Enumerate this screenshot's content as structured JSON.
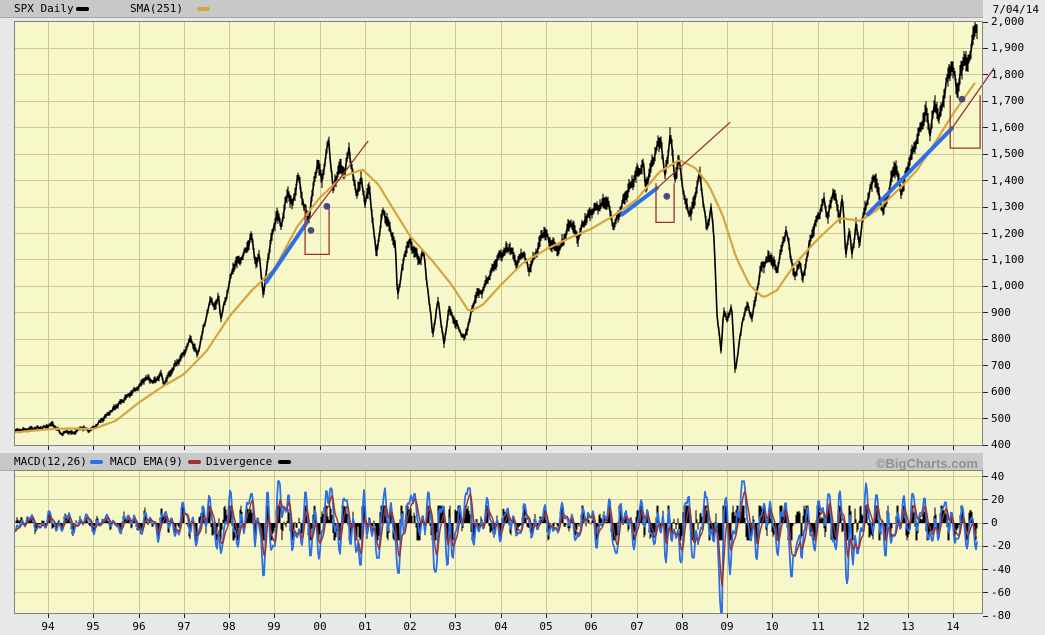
{
  "header": {
    "series_label": "SPX Daily",
    "sma_label": "SMA(251)",
    "date": "7/04/14"
  },
  "macd_header": {
    "macd_label": "MACD(12,26)",
    "ema_label": "MACD EMA(9)",
    "divergence_label": "Divergence",
    "watermark": "©BigCharts.com"
  },
  "colors": {
    "price": "#000000",
    "sma": "#D7A53E",
    "trend_blue": "#2F6FE4",
    "trend_red": "#993333",
    "macd_blue": "#2F6FE4",
    "macd_ema": "#993333",
    "histogram": "#000000",
    "dot": "#4F4680",
    "plot_bg": "#FDFDD4",
    "plot_bg_alt": "#F2F2C0",
    "gridline": "#C9C991",
    "plot_border": "#808080",
    "tick": "#222222",
    "legend_bar_bg": "#C8C8C8",
    "margin_bg": "#E8E8E8",
    "watermark_color": "#909090"
  },
  "chart_data": [
    {
      "type": "line",
      "title": "SPX Daily with SMA(251) overlay",
      "xlabel": "",
      "ylabel": "",
      "x_axis": {
        "tick_labels": [
          "94",
          "95",
          "96",
          "97",
          "98",
          "99",
          "00",
          "01",
          "02",
          "03",
          "04",
          "05",
          "06",
          "07",
          "08",
          "09",
          "10",
          "11",
          "12",
          "13",
          "14"
        ],
        "range_years": [
          1993.25,
          2014.63
        ]
      },
      "y_axis": {
        "ticks": [
          2000,
          1900,
          1800,
          1700,
          1600,
          1500,
          1400,
          1300,
          1200,
          1100,
          1000,
          900,
          800,
          700,
          600,
          500,
          400
        ],
        "tick_labels": [
          "2,000",
          "1,900",
          "1,800",
          "1,700",
          "1,600",
          "1,500",
          "1,400",
          "1,300",
          "1,200",
          "1,100",
          "1,000",
          "900",
          "800",
          "700",
          "600",
          "500",
          "400"
        ],
        "range": [
          400,
          2000
        ]
      },
      "price_anchors": [
        [
          1993.25,
          452
        ],
        [
          1993.6,
          462
        ],
        [
          1993.9,
          466
        ],
        [
          1994.1,
          480
        ],
        [
          1994.3,
          442
        ],
        [
          1994.45,
          452
        ],
        [
          1994.55,
          444
        ],
        [
          1994.75,
          468
        ],
        [
          1994.9,
          455
        ],
        [
          1995.0,
          465
        ],
        [
          1995.25,
          505
        ],
        [
          1995.5,
          545
        ],
        [
          1995.75,
          585
        ],
        [
          1996.0,
          620
        ],
        [
          1996.15,
          655
        ],
        [
          1996.35,
          640
        ],
        [
          1996.5,
          670
        ],
        [
          1996.55,
          630
        ],
        [
          1996.8,
          700
        ],
        [
          1997.0,
          745
        ],
        [
          1997.15,
          805
        ],
        [
          1997.3,
          740
        ],
        [
          1997.5,
          890
        ],
        [
          1997.6,
          950
        ],
        [
          1997.7,
          920
        ],
        [
          1997.77,
          965
        ],
        [
          1997.82,
          877
        ],
        [
          1997.95,
          970
        ],
        [
          1998.1,
          1080
        ],
        [
          1998.3,
          1110
        ],
        [
          1998.5,
          1190
        ],
        [
          1998.6,
          1080
        ],
        [
          1998.67,
          1120
        ],
        [
          1998.76,
          960
        ],
        [
          1998.85,
          1100
        ],
        [
          1998.95,
          1190
        ],
        [
          1999.05,
          1275
        ],
        [
          1999.15,
          1230
        ],
        [
          1999.3,
          1360
        ],
        [
          1999.4,
          1300
        ],
        [
          1999.52,
          1418
        ],
        [
          1999.62,
          1330
        ],
        [
          1999.75,
          1250
        ],
        [
          1999.95,
          1470
        ],
        [
          2000.05,
          1400
        ],
        [
          2000.2,
          1552
        ],
        [
          2000.3,
          1360
        ],
        [
          2000.42,
          1450
        ],
        [
          2000.55,
          1430
        ],
        [
          2000.65,
          1520
        ],
        [
          2000.8,
          1350
        ],
        [
          2000.92,
          1400
        ],
        [
          2001.0,
          1320
        ],
        [
          2001.1,
          1370
        ],
        [
          2001.25,
          1120
        ],
        [
          2001.4,
          1290
        ],
        [
          2001.55,
          1220
        ],
        [
          2001.67,
          1160
        ],
        [
          2001.72,
          966
        ],
        [
          2001.9,
          1140
        ],
        [
          2002.0,
          1165
        ],
        [
          2002.2,
          1100
        ],
        [
          2002.3,
          1125
        ],
        [
          2002.5,
          820
        ],
        [
          2002.62,
          950
        ],
        [
          2002.75,
          776
        ],
        [
          2002.85,
          915
        ],
        [
          2002.95,
          880
        ],
        [
          2003.2,
          800
        ],
        [
          2003.45,
          965
        ],
        [
          2003.6,
          985
        ],
        [
          2003.75,
          1040
        ],
        [
          2003.95,
          1110
        ],
        [
          2004.2,
          1150
        ],
        [
          2004.35,
          1085
        ],
        [
          2004.5,
          1130
        ],
        [
          2004.62,
          1060
        ],
        [
          2004.8,
          1135
        ],
        [
          2004.95,
          1212
        ],
        [
          2005.1,
          1160
        ],
        [
          2005.3,
          1140
        ],
        [
          2005.55,
          1245
        ],
        [
          2005.7,
          1180
        ],
        [
          2005.85,
          1250
        ],
        [
          2006.05,
          1290
        ],
        [
          2006.35,
          1325
        ],
        [
          2006.5,
          1225
        ],
        [
          2006.75,
          1340
        ],
        [
          2007.0,
          1425
        ],
        [
          2007.15,
          1460
        ],
        [
          2007.2,
          1375
        ],
        [
          2007.45,
          1530
        ],
        [
          2007.55,
          1553
        ],
        [
          2007.62,
          1410
        ],
        [
          2007.75,
          1576
        ],
        [
          2007.85,
          1410
        ],
        [
          2007.95,
          1480
        ],
        [
          2008.05,
          1330
        ],
        [
          2008.2,
          1270
        ],
        [
          2008.4,
          1426
        ],
        [
          2008.55,
          1215
        ],
        [
          2008.65,
          1300
        ],
        [
          2008.72,
          1160
        ],
        [
          2008.78,
          890
        ],
        [
          2008.87,
          750
        ],
        [
          2008.92,
          911
        ],
        [
          2009.0,
          870
        ],
        [
          2009.1,
          930
        ],
        [
          2009.18,
          677
        ],
        [
          2009.35,
          880
        ],
        [
          2009.45,
          930
        ],
        [
          2009.55,
          880
        ],
        [
          2009.75,
          1070
        ],
        [
          2009.95,
          1115
        ],
        [
          2010.1,
          1060
        ],
        [
          2010.3,
          1217
        ],
        [
          2010.5,
          1030
        ],
        [
          2010.6,
          1100
        ],
        [
          2010.67,
          1023
        ],
        [
          2010.85,
          1185
        ],
        [
          2011.0,
          1260
        ],
        [
          2011.15,
          1330
        ],
        [
          2011.22,
          1255
        ],
        [
          2011.35,
          1365
        ],
        [
          2011.48,
          1260
        ],
        [
          2011.55,
          1340
        ],
        [
          2011.62,
          1120
        ],
        [
          2011.7,
          1210
        ],
        [
          2011.76,
          1122
        ],
        [
          2011.85,
          1230
        ],
        [
          2011.92,
          1160
        ],
        [
          2012.0,
          1260
        ],
        [
          2012.25,
          1420
        ],
        [
          2012.45,
          1280
        ],
        [
          2012.65,
          1420
        ],
        [
          2012.72,
          1460
        ],
        [
          2012.85,
          1355
        ],
        [
          2013.0,
          1460
        ],
        [
          2013.2,
          1560
        ],
        [
          2013.4,
          1665
        ],
        [
          2013.48,
          1575
        ],
        [
          2013.6,
          1700
        ],
        [
          2013.68,
          1630
        ],
        [
          2013.85,
          1770
        ],
        [
          2013.95,
          1840
        ],
        [
          2014.1,
          1745
        ],
        [
          2014.25,
          1880
        ],
        [
          2014.3,
          1820
        ],
        [
          2014.45,
          1960
        ],
        [
          2014.51,
          1978
        ]
      ],
      "sma_anchors": [
        [
          1993.25,
          448
        ],
        [
          1994.0,
          460
        ],
        [
          1994.5,
          463
        ],
        [
          1995.0,
          461
        ],
        [
          1995.5,
          492
        ],
        [
          1996.0,
          560
        ],
        [
          1996.5,
          618
        ],
        [
          1997.0,
          668
        ],
        [
          1997.5,
          755
        ],
        [
          1998.0,
          885
        ],
        [
          1998.5,
          985
        ],
        [
          1999.0,
          1065
        ],
        [
          1999.5,
          1225
        ],
        [
          2000.0,
          1335
        ],
        [
          2000.5,
          1415
        ],
        [
          2000.95,
          1442
        ],
        [
          2001.3,
          1385
        ],
        [
          2001.6,
          1300
        ],
        [
          2002.0,
          1190
        ],
        [
          2002.5,
          1095
        ],
        [
          2002.9,
          1010
        ],
        [
          2003.3,
          905
        ],
        [
          2003.6,
          930
        ],
        [
          2004.0,
          1005
        ],
        [
          2004.5,
          1090
        ],
        [
          2005.0,
          1140
        ],
        [
          2005.5,
          1182
        ],
        [
          2006.0,
          1218
        ],
        [
          2006.5,
          1268
        ],
        [
          2007.0,
          1328
        ],
        [
          2007.5,
          1432
        ],
        [
          2007.95,
          1478
        ],
        [
          2008.3,
          1448
        ],
        [
          2008.6,
          1382
        ],
        [
          2008.9,
          1270
        ],
        [
          2009.2,
          1110
        ],
        [
          2009.5,
          1005
        ],
        [
          2009.8,
          958
        ],
        [
          2010.1,
          985
        ],
        [
          2010.5,
          1085
        ],
        [
          2011.0,
          1178
        ],
        [
          2011.5,
          1258
        ],
        [
          2011.95,
          1248
        ],
        [
          2012.3,
          1288
        ],
        [
          2012.8,
          1368
        ],
        [
          2013.2,
          1440
        ],
        [
          2013.6,
          1545
        ],
        [
          2014.0,
          1655
        ],
        [
          2014.51,
          1778
        ]
      ],
      "blue_trendlines": [
        [
          [
            1998.82,
            1016
          ],
          [
            1999.72,
            1242
          ]
        ],
        [
          [
            2006.68,
            1272
          ],
          [
            2007.45,
            1371
          ]
        ],
        [
          [
            2012.11,
            1273
          ],
          [
            2013.97,
            1598
          ]
        ]
      ],
      "red_trendlines": [
        [
          [
            1999.72,
            1242
          ],
          [
            2001.07,
            1550
          ]
        ],
        [
          [
            2007.45,
            1371
          ],
          [
            2009.07,
            1621
          ]
        ],
        [
          [
            2013.97,
            1598
          ],
          [
            2014.9,
            1826
          ]
        ]
      ],
      "boxes": [
        [
          1999.68,
          1299,
          2000.21,
          1121
        ],
        [
          2007.43,
          1390,
          2007.83,
          1242
        ],
        [
          2013.93,
          1723,
          2014.59,
          1523
        ]
      ],
      "dots": [
        [
          1999.81,
          1212
        ],
        [
          2000.16,
          1303
        ],
        [
          2007.67,
          1341
        ],
        [
          2014.19,
          1708
        ]
      ]
    },
    {
      "type": "line+histogram",
      "title": "MACD(12,26) with MACD EMA(9) and Divergence histogram",
      "y_axis": {
        "ticks": [
          40,
          20,
          0,
          -20,
          -40,
          -60,
          -80
        ],
        "tick_labels": [
          "40",
          "20",
          "0",
          "-20",
          "-40",
          "-60",
          "-80"
        ],
        "range": [
          -80,
          45
        ]
      },
      "amplitude_anchors": [
        [
          1993.3,
          6
        ],
        [
          1994.3,
          9
        ],
        [
          1995.3,
          7
        ],
        [
          1996.3,
          11
        ],
        [
          1997.0,
          16
        ],
        [
          1997.6,
          22
        ],
        [
          1998.3,
          22
        ],
        [
          1998.8,
          30
        ],
        [
          1999.3,
          26
        ],
        [
          2000.0,
          26
        ],
        [
          2000.8,
          28
        ],
        [
          2001.5,
          28
        ],
        [
          2002.0,
          26
        ],
        [
          2002.7,
          30
        ],
        [
          2003.3,
          22
        ],
        [
          2004.0,
          15
        ],
        [
          2005.0,
          13
        ],
        [
          2006.0,
          16
        ],
        [
          2006.6,
          22
        ],
        [
          2007.3,
          18
        ],
        [
          2007.9,
          26
        ],
        [
          2008.5,
          26
        ],
        [
          2008.9,
          40
        ],
        [
          2009.4,
          30
        ],
        [
          2010.0,
          20
        ],
        [
          2010.5,
          30
        ],
        [
          2011.0,
          22
        ],
        [
          2011.7,
          32
        ],
        [
          2012.3,
          22
        ],
        [
          2013.0,
          20
        ],
        [
          2013.7,
          20
        ],
        [
          2014.5,
          18
        ]
      ],
      "events": [
        [
          1997.82,
          -26,
          0.035
        ],
        [
          1998.5,
          25,
          0.05
        ],
        [
          1998.76,
          -45,
          0.045
        ],
        [
          1999.1,
          36,
          0.05
        ],
        [
          1999.8,
          -28,
          0.04
        ],
        [
          2000.25,
          30,
          0.05
        ],
        [
          2000.9,
          -36,
          0.045
        ],
        [
          2001.3,
          -30,
          0.04
        ],
        [
          2001.74,
          -43,
          0.04
        ],
        [
          2002.1,
          25,
          0.05
        ],
        [
          2002.55,
          -42,
          0.045
        ],
        [
          2002.82,
          -36,
          0.04
        ],
        [
          2003.3,
          30,
          0.06
        ],
        [
          2006.55,
          -26,
          0.045
        ],
        [
          2007.65,
          -34,
          0.04
        ],
        [
          2007.98,
          -34,
          0.04
        ],
        [
          2008.25,
          -30,
          0.05
        ],
        [
          2008.55,
          22,
          0.04
        ],
        [
          2008.87,
          -80,
          0.045
        ],
        [
          2009.35,
          36,
          0.06
        ],
        [
          2010.42,
          -46,
          0.045
        ],
        [
          2010.65,
          -30,
          0.04
        ],
        [
          2011.25,
          25,
          0.05
        ],
        [
          2011.65,
          -52,
          0.045
        ],
        [
          2011.88,
          -26,
          0.04
        ],
        [
          2012.3,
          24,
          0.05
        ],
        [
          2012.5,
          -28,
          0.04
        ],
        [
          2013.1,
          25,
          0.05
        ],
        [
          2014.3,
          -22,
          0.04
        ]
      ]
    }
  ]
}
